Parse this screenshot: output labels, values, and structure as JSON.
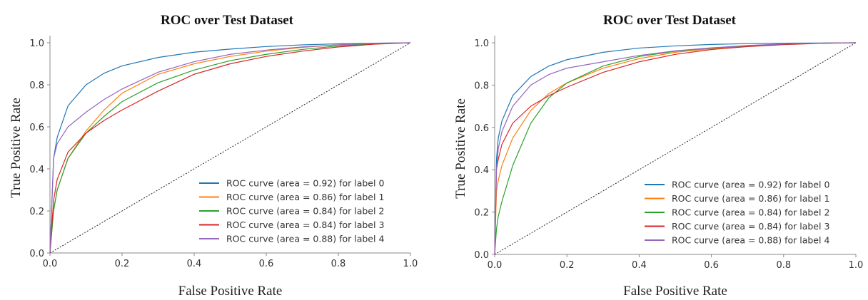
{
  "chart_data": [
    {
      "type": "line",
      "title": "ROC over Test Dataset",
      "xlabel": "False Positive Rate",
      "ylabel": "True Positive Rate",
      "xlim": [
        0.0,
        1.0
      ],
      "ylim": [
        0.0,
        1.0
      ],
      "xticks": [
        "0.0",
        "0.2",
        "0.4",
        "0.6",
        "0.8",
        "1.0"
      ],
      "yticks": [
        "0.0",
        "0.2",
        "0.4",
        "0.6",
        "0.8",
        "1.0"
      ],
      "legend_position": "lower-right",
      "grid": false,
      "series": [
        {
          "name": "ROC curve (area = 0.92) for label 0",
          "color": "#1f77b4",
          "x": [
            0,
            0.01,
            0.02,
            0.05,
            0.1,
            0.15,
            0.2,
            0.3,
            0.4,
            0.5,
            0.6,
            0.7,
            0.8,
            0.9,
            1.0
          ],
          "y": [
            0,
            0.45,
            0.55,
            0.7,
            0.8,
            0.855,
            0.89,
            0.93,
            0.955,
            0.97,
            0.982,
            0.99,
            0.995,
            0.998,
            1.0
          ]
        },
        {
          "name": "ROC curve (area = 0.86) for label 1",
          "color": "#ff7f0e",
          "x": [
            0,
            0.01,
            0.02,
            0.05,
            0.1,
            0.15,
            0.2,
            0.3,
            0.4,
            0.5,
            0.6,
            0.7,
            0.8,
            0.9,
            1.0
          ],
          "y": [
            0,
            0.2,
            0.3,
            0.45,
            0.58,
            0.68,
            0.76,
            0.85,
            0.9,
            0.935,
            0.96,
            0.978,
            0.99,
            0.997,
            1.0
          ]
        },
        {
          "name": "ROC curve (area = 0.84) for label 2",
          "color": "#2ca02c",
          "x": [
            0,
            0.01,
            0.02,
            0.05,
            0.1,
            0.15,
            0.2,
            0.3,
            0.4,
            0.5,
            0.6,
            0.7,
            0.8,
            0.9,
            1.0
          ],
          "y": [
            0,
            0.2,
            0.3,
            0.45,
            0.57,
            0.65,
            0.72,
            0.81,
            0.87,
            0.915,
            0.945,
            0.968,
            0.985,
            0.995,
            1.0
          ]
        },
        {
          "name": "ROC curve (area = 0.84) for label 3",
          "color": "#d62728",
          "x": [
            0,
            0.01,
            0.02,
            0.05,
            0.1,
            0.15,
            0.2,
            0.3,
            0.4,
            0.5,
            0.6,
            0.7,
            0.8,
            0.9,
            1.0
          ],
          "y": [
            0,
            0.25,
            0.35,
            0.48,
            0.57,
            0.63,
            0.68,
            0.77,
            0.85,
            0.9,
            0.935,
            0.96,
            0.98,
            0.993,
            1.0
          ]
        },
        {
          "name": "ROC curve (area = 0.88) for label 4",
          "color": "#9467bd",
          "x": [
            0,
            0.01,
            0.02,
            0.05,
            0.1,
            0.15,
            0.2,
            0.3,
            0.4,
            0.5,
            0.6,
            0.7,
            0.8,
            0.9,
            1.0
          ],
          "y": [
            0,
            0.45,
            0.52,
            0.6,
            0.67,
            0.73,
            0.78,
            0.86,
            0.91,
            0.945,
            0.965,
            0.98,
            0.99,
            0.997,
            1.0
          ]
        }
      ]
    },
    {
      "type": "line",
      "title": "ROC over Test Dataset",
      "xlabel": "False Positive Rate",
      "ylabel": "True Positive Rate",
      "xlim": [
        0.0,
        1.0
      ],
      "ylim": [
        0.0,
        1.0
      ],
      "xticks": [
        "0.0",
        "0.2",
        "0.4",
        "0.6",
        "0.8",
        "1.0"
      ],
      "yticks": [
        "0.0",
        "0.2",
        "0.4",
        "0.6",
        "0.8",
        "1.0"
      ],
      "legend_position": "lower-right",
      "grid": false,
      "series": [
        {
          "name": "ROC curve (area = 0.92) for label 0",
          "color": "#1f77b4",
          "x": [
            0,
            0.005,
            0.01,
            0.02,
            0.05,
            0.1,
            0.15,
            0.2,
            0.3,
            0.4,
            0.5,
            0.6,
            0.7,
            0.8,
            0.9,
            1.0
          ],
          "y": [
            0,
            0.45,
            0.55,
            0.63,
            0.75,
            0.84,
            0.89,
            0.92,
            0.955,
            0.975,
            0.985,
            0.992,
            0.996,
            0.998,
            0.999,
            1.0
          ]
        },
        {
          "name": "ROC curve (area = 0.86) for label 1",
          "color": "#ff7f0e",
          "x": [
            0,
            0.005,
            0.01,
            0.02,
            0.05,
            0.1,
            0.15,
            0.2,
            0.3,
            0.4,
            0.5,
            0.6,
            0.7,
            0.8,
            0.9,
            1.0
          ],
          "y": [
            0,
            0.3,
            0.35,
            0.42,
            0.55,
            0.68,
            0.76,
            0.81,
            0.88,
            0.925,
            0.955,
            0.972,
            0.985,
            0.993,
            0.998,
            1.0
          ]
        },
        {
          "name": "ROC curve (area = 0.84) for label 2",
          "color": "#2ca02c",
          "x": [
            0,
            0.005,
            0.01,
            0.02,
            0.05,
            0.1,
            0.15,
            0.2,
            0.3,
            0.4,
            0.5,
            0.6,
            0.7,
            0.8,
            0.9,
            1.0
          ],
          "y": [
            0,
            0.12,
            0.18,
            0.25,
            0.42,
            0.62,
            0.74,
            0.81,
            0.89,
            0.935,
            0.96,
            0.975,
            0.986,
            0.993,
            0.998,
            1.0
          ]
        },
        {
          "name": "ROC curve (area = 0.84) for label 3",
          "color": "#d62728",
          "x": [
            0,
            0.005,
            0.01,
            0.02,
            0.05,
            0.1,
            0.15,
            0.2,
            0.3,
            0.4,
            0.5,
            0.6,
            0.7,
            0.8,
            0.9,
            1.0
          ],
          "y": [
            0,
            0.4,
            0.45,
            0.52,
            0.62,
            0.7,
            0.75,
            0.79,
            0.86,
            0.91,
            0.945,
            0.968,
            0.982,
            0.991,
            0.997,
            1.0
          ]
        },
        {
          "name": "ROC curve (area = 0.88) for label 4",
          "color": "#9467bd",
          "x": [
            0,
            0.005,
            0.01,
            0.02,
            0.05,
            0.1,
            0.15,
            0.2,
            0.3,
            0.4,
            0.5,
            0.6,
            0.7,
            0.8,
            0.9,
            1.0
          ],
          "y": [
            0,
            0.4,
            0.5,
            0.58,
            0.7,
            0.8,
            0.85,
            0.88,
            0.91,
            0.94,
            0.962,
            0.976,
            0.987,
            0.994,
            0.998,
            1.0
          ]
        }
      ]
    }
  ]
}
